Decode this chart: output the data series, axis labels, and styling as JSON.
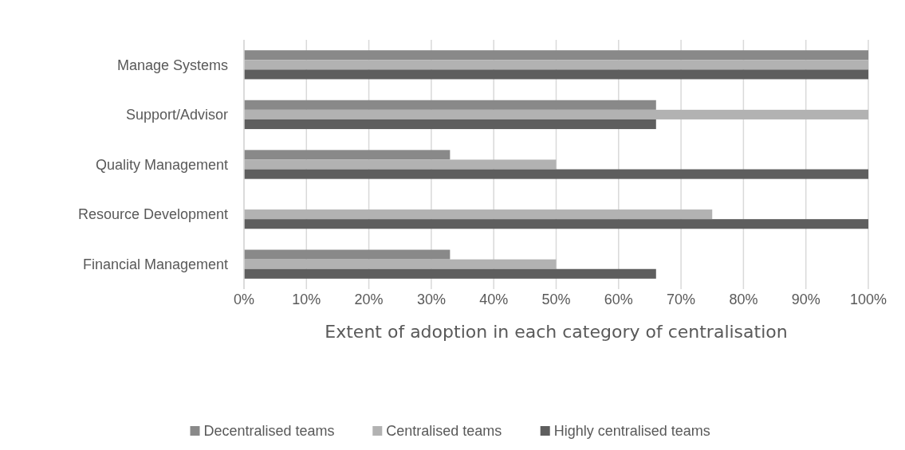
{
  "chart_data": {
    "type": "bar",
    "orientation": "horizontal",
    "xlabel": "Extent of adoption in each category of centralisation",
    "categories": [
      "Manage Systems",
      "Support/Advisor",
      "Quality Management",
      "Resource Development",
      "Financial Management"
    ],
    "series": [
      {
        "name": "Decentralised teams",
        "color": "#898989",
        "values": [
          100,
          66,
          33,
          0,
          33
        ]
      },
      {
        "name": "Centralised teams",
        "color": "#b2b2b2",
        "values": [
          100,
          100,
          50,
          75,
          50
        ]
      },
      {
        "name": "Highly centralised teams",
        "color": "#5e5e5e",
        "values": [
          100,
          66,
          100,
          100,
          66
        ]
      }
    ],
    "xlim": [
      0,
      100
    ],
    "xticks": [
      {
        "value": 0,
        "label": "0%"
      },
      {
        "value": 10,
        "label": "10%"
      },
      {
        "value": 20,
        "label": "20%"
      },
      {
        "value": 30,
        "label": "30%"
      },
      {
        "value": 40,
        "label": "40%"
      },
      {
        "value": 50,
        "label": "50%"
      },
      {
        "value": 60,
        "label": "60%"
      },
      {
        "value": 70,
        "label": "70%"
      },
      {
        "value": 80,
        "label": "80%"
      },
      {
        "value": 90,
        "label": "90%"
      },
      {
        "value": 100,
        "label": "100%"
      }
    ],
    "grid": "x",
    "legend": "bottom"
  }
}
